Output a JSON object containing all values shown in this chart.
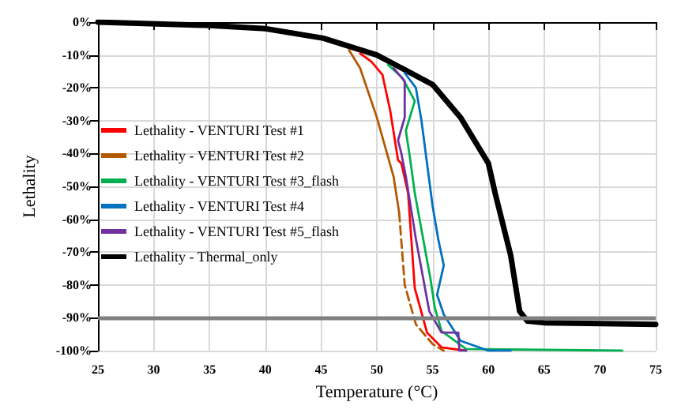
{
  "chart_data": {
    "type": "line",
    "xlabel": "Temperature (°C)",
    "ylabel": "Lethality",
    "xlim": [
      25,
      75
    ],
    "xticks": [
      25,
      30,
      35,
      40,
      45,
      50,
      55,
      60,
      65,
      70,
      75
    ],
    "ylim": [
      -100,
      0
    ],
    "yticks": [
      {
        "value": -100,
        "label": "-100%"
      },
      {
        "value": -90,
        "label": "-90%"
      },
      {
        "value": -80,
        "label": "-80%"
      },
      {
        "value": -70,
        "label": "-70%"
      },
      {
        "value": -60,
        "label": "-60%"
      },
      {
        "value": -50,
        "label": "-50%"
      },
      {
        "value": -40,
        "label": "-40%"
      },
      {
        "value": -30,
        "label": "-30%"
      },
      {
        "value": -20,
        "label": "-20%"
      },
      {
        "value": -10,
        "label": "-10%"
      },
      {
        "value": 0,
        "label": "0%"
      }
    ],
    "grid": true,
    "legend": "left",
    "marker": "none",
    "ref_lines": [
      {
        "axis": "y",
        "value": -90,
        "color": "#808080"
      }
    ],
    "series": [
      {
        "name": "Lethality - VENTURI Test #1",
        "color": "#ff0000",
        "x": [
          48.5,
          49.5,
          50.5,
          51.2,
          51.9,
          52.2,
          52.8,
          53.4,
          54.5,
          55.8,
          58
        ],
        "values": [
          -9.5,
          -12,
          -16,
          -27,
          -42,
          -43,
          -52,
          -81,
          -94.5,
          -99,
          -100
        ]
      },
      {
        "name": "Lethality - VENTURI Test #2",
        "color": "#b35900",
        "x": [
          47.5,
          48.5,
          50,
          51.5,
          52
        ],
        "values": [
          -8.5,
          -14,
          -29,
          -47,
          -58
        ]
      },
      {
        "color": "#b35900",
        "line_style": "dashed",
        "x": [
          52,
          52.5,
          53.5,
          55,
          56
        ],
        "values": [
          -58,
          -80,
          -92,
          -98,
          -100
        ]
      },
      {
        "name": "Lethality - VENTURI Test #3_flash",
        "color": "#00b050",
        "x": [
          51,
          52.3,
          53.4,
          52.6,
          53,
          53.4,
          54.8,
          55.2,
          55.8,
          58,
          72
        ],
        "values": [
          -13,
          -17,
          -24,
          -33,
          -42,
          -52,
          -78,
          -87,
          -94,
          -99.5,
          -100
        ]
      },
      {
        "name": "Lethality - VENTURI Test #4",
        "color": "#0070c0",
        "x": [
          52.5,
          53.5,
          54,
          55,
          55.5,
          56,
          55.4,
          56,
          57.5,
          60,
          62
        ],
        "values": [
          -15.5,
          -20,
          -30,
          -56,
          -66,
          -74,
          -83,
          -89,
          -97,
          -100,
          -100
        ]
      },
      {
        "name": "Lethality - VENTURI Test #5_flash",
        "color": "#7030a0",
        "x": [
          51.5,
          52.5,
          52.5,
          51.9,
          52.2,
          52.6,
          53.5,
          54.7,
          55.8,
          57.3,
          57.4,
          58
        ],
        "values": [
          -14,
          -18,
          -29,
          -36,
          -40,
          -47,
          -66,
          -88,
          -94.5,
          -94.5,
          -100,
          -100
        ]
      },
      {
        "name": "Lethality - Thermal_only",
        "color": "#000000",
        "x": [
          25,
          35,
          40,
          45.2,
          50,
          55,
          57.5,
          60,
          60.6,
          62,
          62.8,
          63.5,
          65,
          75
        ],
        "values": [
          0,
          -1,
          -2,
          -4.9,
          -10,
          -19,
          -29,
          -43,
          -52,
          -71,
          -88,
          -91,
          -91.5,
          -92
        ]
      }
    ]
  }
}
